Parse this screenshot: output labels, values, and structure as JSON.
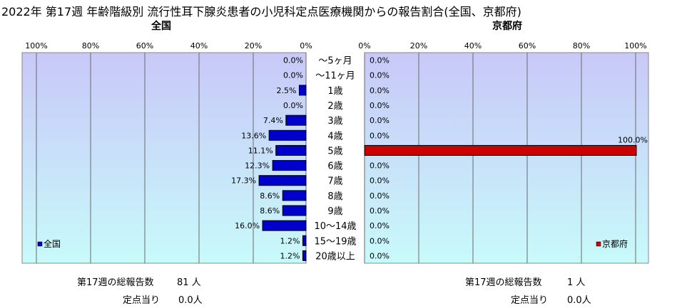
{
  "title": "2022年 第17週 年齢階級別 流行性耳下腺炎患者の小児科定点医療機関からの報告割合(全国、京都府)",
  "chart_data": [
    {
      "type": "bar",
      "orientation": "horizontal",
      "direction": "right-to-left",
      "title": "全国",
      "categories": [
        "～5ヶ月",
        "～11ヶ月",
        "1歳",
        "2歳",
        "3歳",
        "4歳",
        "5歳",
        "6歳",
        "7歳",
        "8歳",
        "9歳",
        "10～14歳",
        "15～19歳",
        "20歳以上"
      ],
      "series": [
        {
          "name": "全国",
          "color": "#0000CC",
          "values": [
            0.0,
            0.0,
            2.5,
            0.0,
            7.4,
            13.6,
            11.1,
            12.3,
            17.3,
            8.6,
            8.6,
            16.0,
            1.2,
            1.2
          ]
        }
      ],
      "value_labels": [
        "0.0%",
        "0.0%",
        "2.5%",
        "0.0%",
        "7.4%",
        "13.6%",
        "11.1%",
        "12.3%",
        "17.3%",
        "8.6%",
        "8.6%",
        "16.0%",
        "1.2%",
        "1.2%"
      ],
      "xlim": [
        0,
        100
      ],
      "ticks": [
        "100%",
        "80%",
        "60%",
        "40%",
        "20%",
        "0%"
      ],
      "legend": "bottom-left",
      "grid": true
    },
    {
      "type": "bar",
      "orientation": "horizontal",
      "direction": "left-to-right",
      "title": "京都府",
      "categories": [
        "～5ヶ月",
        "～11ヶ月",
        "1歳",
        "2歳",
        "3歳",
        "4歳",
        "5歳",
        "6歳",
        "7歳",
        "8歳",
        "9歳",
        "10～14歳",
        "15～19歳",
        "20歳以上"
      ],
      "series": [
        {
          "name": "京都府",
          "color": "#CC0000",
          "values": [
            0.0,
            0.0,
            0.0,
            0.0,
            0.0,
            0.0,
            100.0,
            0.0,
            0.0,
            0.0,
            0.0,
            0.0,
            0.0,
            0.0
          ]
        }
      ],
      "value_labels": [
        "0.0%",
        "0.0%",
        "0.0%",
        "0.0%",
        "0.0%",
        "0.0%",
        "100.0%",
        "0.0%",
        "0.0%",
        "0.0%",
        "0.0%",
        "0.0%",
        "0.0%",
        "0.0%"
      ],
      "xlim": [
        0,
        100
      ],
      "ticks": [
        "0%",
        "20%",
        "40%",
        "60%",
        "80%",
        "100%"
      ],
      "legend": "bottom-right",
      "grid": true
    }
  ],
  "footer": {
    "left": {
      "total_label": "第17週の総報告数",
      "total_value": "81 人",
      "per_label": "定点当り",
      "per_value": "0.0人"
    },
    "right": {
      "total_label": "第17週の総報告数",
      "total_value": "1 人",
      "per_label": "定点当り",
      "per_value": "0.0人"
    }
  }
}
